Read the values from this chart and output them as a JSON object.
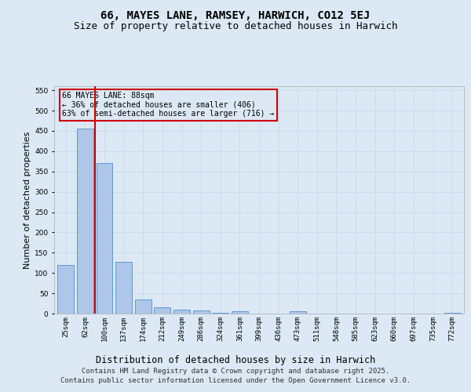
{
  "title": "66, MAYES LANE, RAMSEY, HARWICH, CO12 5EJ",
  "subtitle": "Size of property relative to detached houses in Harwich",
  "xlabel": "Distribution of detached houses by size in Harwich",
  "ylabel": "Number of detached properties",
  "categories": [
    "25sqm",
    "62sqm",
    "100sqm",
    "137sqm",
    "174sqm",
    "212sqm",
    "249sqm",
    "286sqm",
    "324sqm",
    "361sqm",
    "399sqm",
    "436sqm",
    "473sqm",
    "511sqm",
    "548sqm",
    "585sqm",
    "623sqm",
    "660sqm",
    "697sqm",
    "735sqm",
    "772sqm"
  ],
  "values": [
    120,
    455,
    370,
    128,
    35,
    15,
    10,
    7,
    1,
    6,
    0,
    0,
    5,
    0,
    0,
    0,
    0,
    0,
    0,
    0,
    2
  ],
  "bar_color": "#aec6e8",
  "bar_edge_color": "#5b9bd5",
  "grid_color": "#c8d8ec",
  "background_color": "#dce9f5",
  "vline_color": "#cc0000",
  "vline_position": 1.5,
  "annotation_text": "66 MAYES LANE: 88sqm\n← 36% of detached houses are smaller (406)\n63% of semi-detached houses are larger (716) →",
  "annotation_box_color": "#cc0000",
  "ylim": [
    0,
    560
  ],
  "yticks": [
    0,
    50,
    100,
    150,
    200,
    250,
    300,
    350,
    400,
    450,
    500,
    550
  ],
  "footer": "Contains HM Land Registry data © Crown copyright and database right 2025.\nContains public sector information licensed under the Open Government Licence v3.0.",
  "title_fontsize": 10,
  "subtitle_fontsize": 9,
  "xlabel_fontsize": 8.5,
  "ylabel_fontsize": 8,
  "tick_fontsize": 6.5,
  "footer_fontsize": 6.5,
  "annotation_fontsize": 7
}
